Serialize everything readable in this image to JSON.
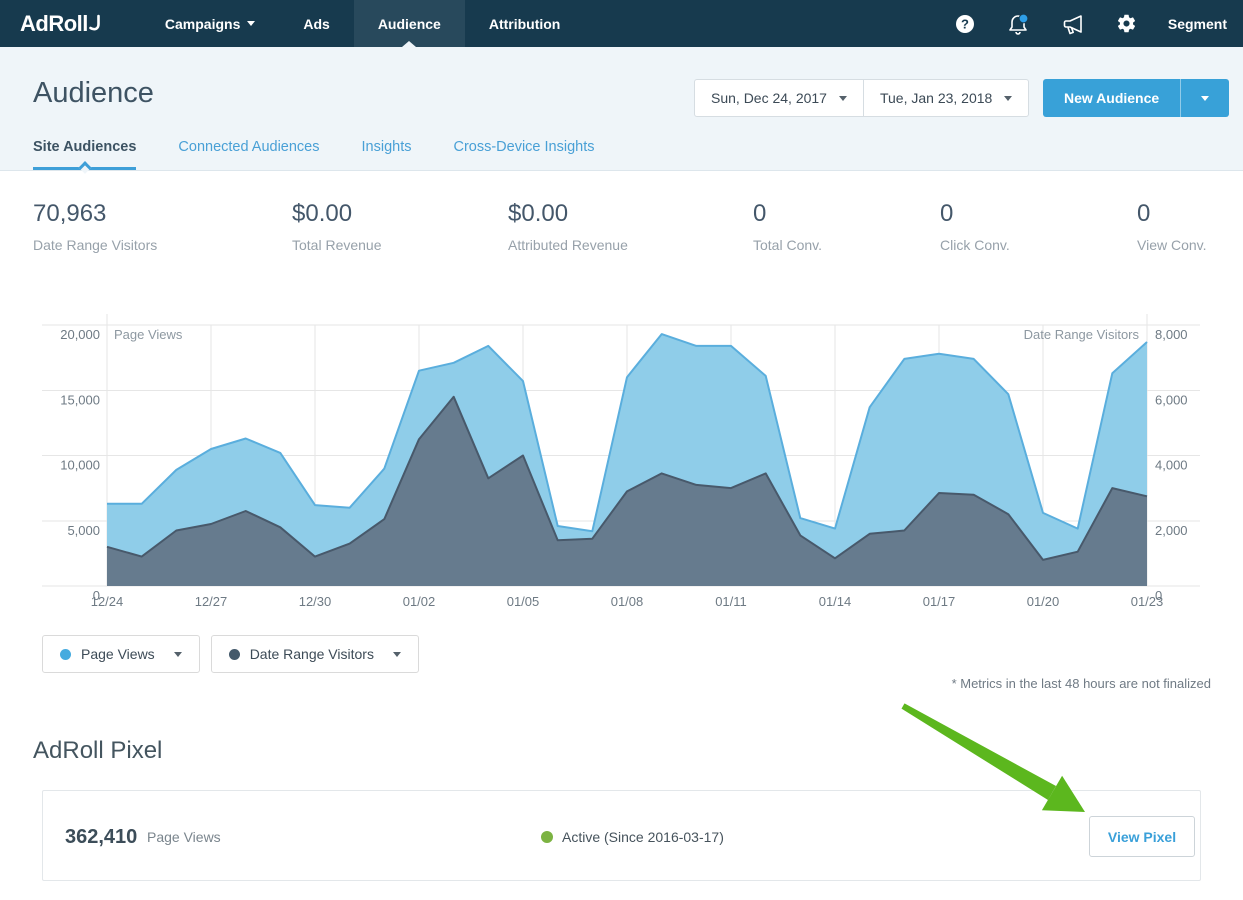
{
  "nav": {
    "logo": "AdRoll",
    "items": [
      {
        "label": "Campaigns",
        "has_caret": true
      },
      {
        "label": "Ads"
      },
      {
        "label": "Audience",
        "active": true
      },
      {
        "label": "Attribution"
      }
    ],
    "right_icons": [
      "help-icon",
      "notifications-bell-icon",
      "megaphone-icon",
      "settings-gear-icon"
    ],
    "account_label": "Segment",
    "notification_dot_color": "#2e9fe8"
  },
  "header": {
    "title": "Audience",
    "date_start": "Sun, Dec 24, 2017",
    "date_end": "Tue, Jan 23, 2018",
    "new_audience_label": "New Audience"
  },
  "tabs": [
    {
      "label": "Site Audiences",
      "active": true
    },
    {
      "label": "Connected Audiences"
    },
    {
      "label": "Insights"
    },
    {
      "label": "Cross-Device Insights"
    }
  ],
  "stats": [
    {
      "value": "70,963",
      "label": "Date Range Visitors"
    },
    {
      "value": "$0.00",
      "label": "Total Revenue"
    },
    {
      "value": "$0.00",
      "label": "Attributed Revenue"
    },
    {
      "value": "0",
      "label": "Total Conv."
    },
    {
      "value": "0",
      "label": "Click Conv."
    },
    {
      "value": "0",
      "label": "View Conv."
    }
  ],
  "chart_data": {
    "type": "area",
    "x": [
      "12/24",
      "12/25",
      "12/26",
      "12/27",
      "12/28",
      "12/29",
      "12/30",
      "12/31",
      "01/01",
      "01/02",
      "01/03",
      "01/04",
      "01/05",
      "01/06",
      "01/07",
      "01/08",
      "01/09",
      "01/10",
      "01/11",
      "01/12",
      "01/13",
      "01/14",
      "01/15",
      "01/16",
      "01/17",
      "01/18",
      "01/19",
      "01/20",
      "01/21",
      "01/22",
      "01/23"
    ],
    "x_tick_labels": [
      "12/24",
      "12/27",
      "12/30",
      "01/02",
      "01/05",
      "01/08",
      "01/11",
      "01/14",
      "01/17",
      "01/20",
      "01/23"
    ],
    "series": [
      {
        "name": "Page Views",
        "axis": "left",
        "color": "#8fcde9",
        "line_color": "#5aaedd",
        "values": [
          6300,
          6300,
          8900,
          10500,
          11300,
          10200,
          6200,
          6000,
          9000,
          16500,
          17100,
          18400,
          15700,
          4600,
          4200,
          16000,
          19300,
          18400,
          18400,
          16100,
          5200,
          4400,
          13700,
          17400,
          17800,
          17400,
          14700,
          5600,
          4400,
          16300,
          18700
        ]
      },
      {
        "name": "Date Range Visitors",
        "axis": "right",
        "color": "#667b8e",
        "line_color": "#48596b",
        "values": [
          1200,
          900,
          1700,
          1900,
          2300,
          1800,
          900,
          1300,
          2050,
          4500,
          5800,
          3300,
          4000,
          1400,
          1450,
          2900,
          3450,
          3100,
          3000,
          3450,
          1550,
          850,
          1600,
          1700,
          2850,
          2800,
          2200,
          800,
          1050,
          3000,
          2750
        ]
      }
    ],
    "left_axis": {
      "title": "Page Views",
      "min": 0,
      "max": 20000,
      "ticks": [
        0,
        5000,
        10000,
        15000,
        20000
      ]
    },
    "right_axis": {
      "title": "Date Range Visitors",
      "min": 0,
      "max": 8000,
      "ticks": [
        0,
        2000,
        4000,
        6000,
        8000
      ]
    },
    "grid": true,
    "legend_position": "bottom-left"
  },
  "legend": [
    {
      "label": "Page Views",
      "color": "#45abdf"
    },
    {
      "label": "Date Range Visitors",
      "color": "#44596b"
    }
  ],
  "footnote": "* Metrics in the last 48 hours are not finalized",
  "pixel_section": {
    "title": "AdRoll Pixel",
    "page_views_value": "362,410",
    "page_views_label": "Page Views",
    "status_label": "Active (Since 2016-03-17)",
    "status_color": "#7cb342",
    "view_pixel_label": "View Pixel"
  },
  "annotation": {
    "arrow_color": "#5cb71e"
  }
}
